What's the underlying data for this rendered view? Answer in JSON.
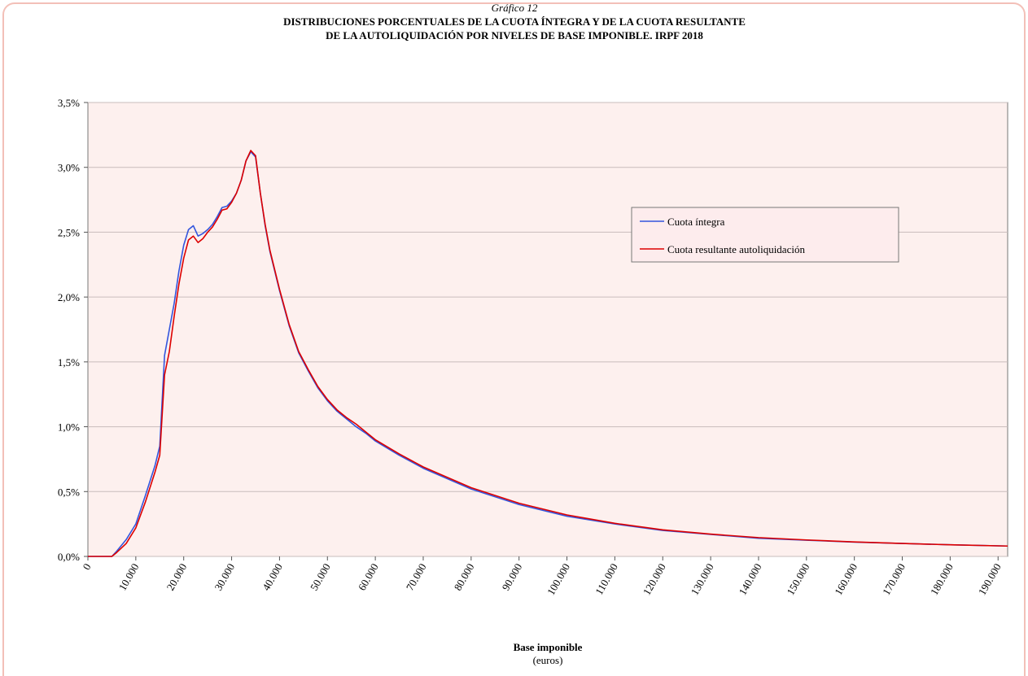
{
  "chart_data": {
    "type": "line",
    "title": "Gráfico 12",
    "subtitle": [
      "DISTRIBUCIONES PORCENTUALES DE LA CUOTA ÍNTEGRA Y DE LA CUOTA RESULTANTE",
      "DE LA AUTOLIQUIDACIÓN POR NIVELES DE BASE IMPONIBLE.  IRPF 2018"
    ],
    "x_label": "Base imponible",
    "x_unit": "(euros)",
    "x": [
      0,
      5000,
      6000,
      8000,
      10000,
      12000,
      14000,
      15000,
      16000,
      17000,
      18000,
      19000,
      20000,
      21000,
      22000,
      23000,
      24000,
      25000,
      26000,
      27000,
      28000,
      29000,
      30000,
      31000,
      32000,
      33000,
      34000,
      35000,
      36000,
      37000,
      38000,
      40000,
      42000,
      44000,
      46000,
      48000,
      50000,
      52000,
      54000,
      56000,
      58000,
      60000,
      65000,
      70000,
      80000,
      90000,
      100000,
      110000,
      120000,
      130000,
      140000,
      150000,
      160000,
      170000,
      180000,
      192000
    ],
    "series": [
      {
        "name": "Cuota íntegra",
        "color": "#3355dd",
        "values": [
          0,
          0,
          0.04,
          0.13,
          0.25,
          0.47,
          0.7,
          0.85,
          1.55,
          1.75,
          1.95,
          2.2,
          2.4,
          2.52,
          2.55,
          2.47,
          2.49,
          2.52,
          2.56,
          2.62,
          2.69,
          2.7,
          2.74,
          2.8,
          2.9,
          3.05,
          3.12,
          3.08,
          2.8,
          2.55,
          2.35,
          2.05,
          1.78,
          1.57,
          1.43,
          1.3,
          1.2,
          1.12,
          1.06,
          1.0,
          0.95,
          0.89,
          0.78,
          0.68,
          0.52,
          0.4,
          0.31,
          0.25,
          0.2,
          0.17,
          0.14,
          0.125,
          0.11,
          0.1,
          0.09,
          0.08
        ]
      },
      {
        "name": "Cuota resultante autoliquidación",
        "color": "#dd0000",
        "values": [
          0,
          0,
          0.03,
          0.1,
          0.22,
          0.42,
          0.65,
          0.78,
          1.4,
          1.58,
          1.85,
          2.1,
          2.3,
          2.44,
          2.47,
          2.42,
          2.45,
          2.5,
          2.54,
          2.6,
          2.67,
          2.68,
          2.73,
          2.8,
          2.9,
          3.05,
          3.13,
          3.09,
          2.8,
          2.56,
          2.36,
          2.06,
          1.79,
          1.58,
          1.44,
          1.31,
          1.21,
          1.13,
          1.07,
          1.02,
          0.96,
          0.9,
          0.79,
          0.69,
          0.53,
          0.41,
          0.32,
          0.255,
          0.205,
          0.172,
          0.145,
          0.127,
          0.112,
          0.1,
          0.09,
          0.08
        ]
      }
    ],
    "xlim": [
      0,
      192000
    ],
    "xticks": [
      0,
      {
        "value": 10000,
        "label": "10.000"
      },
      {
        "value": 20000,
        "label": "20.000"
      },
      {
        "value": 30000,
        "label": "30.000"
      },
      {
        "value": 40000,
        "label": "40.000"
      },
      {
        "value": 50000,
        "label": "50.000"
      },
      {
        "value": 60000,
        "label": "60.000"
      },
      {
        "value": 70000,
        "label": "70.000"
      },
      {
        "value": 80000,
        "label": "80.000"
      },
      {
        "value": 90000,
        "label": "90.000"
      },
      {
        "value": 100000,
        "label": "100.000"
      },
      {
        "value": 110000,
        "label": "110.000"
      },
      {
        "value": 120000,
        "label": "120.000"
      },
      {
        "value": 130000,
        "label": "130.000"
      },
      {
        "value": 140000,
        "label": "140.000"
      },
      {
        "value": 150000,
        "label": "150.000"
      },
      {
        "value": 160000,
        "label": "160.000"
      },
      {
        "value": 170000,
        "label": "170.000"
      },
      {
        "value": 180000,
        "label": "180.000"
      },
      {
        "value": 190000,
        "label": "190.000"
      }
    ],
    "ylim": [
      0,
      3.5
    ],
    "yticks": [
      {
        "value": 0,
        "label": "0,0%"
      },
      {
        "value": 0.5,
        "label": "0,5%"
      },
      {
        "value": 1,
        "label": "1,0%"
      },
      {
        "value": 1.5,
        "label": "1,5%"
      },
      {
        "value": 2,
        "label": "2,0%"
      },
      {
        "value": 2.5,
        "label": "2,5%"
      },
      {
        "value": 3,
        "label": "3,0%"
      },
      {
        "value": 3.5,
        "label": "3,5%"
      }
    ],
    "grid": true,
    "legend": "upper right"
  }
}
